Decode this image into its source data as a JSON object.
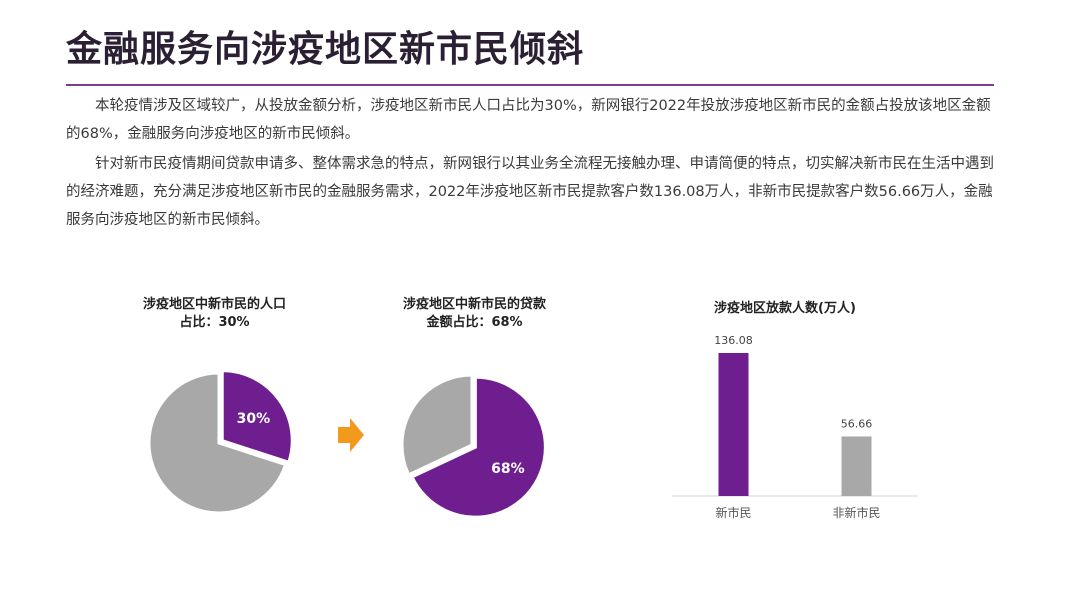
{
  "page": {
    "title": "金融服务向涉疫地区新市民倾斜",
    "paragraph1": "本轮疫情涉及区域较广，从投放金额分析，涉疫地区新市民人口占比为30%，新网银行2022年投放涉疫地区新市民的金额占投放该地区金额的68%，金融服务向涉疫地区的新市民倾斜。",
    "paragraph2": "针对新市民疫情期间贷款申请多、整体需求急的特点，新网银行以其业务全流程无接触办理、申请简便的特点，切实解决新市民在生活中遇到的经济难题，充分满足涉疫地区新市民的金融服务需求，2022年涉疫地区新市民提款客户数136.08万人，非新市民提款客户数56.66万人，金融服务向涉疫地区的新市民倾斜。"
  },
  "colors": {
    "purple": "#6e1e8f",
    "gray": "#a8a8a8",
    "arrow": "#f39a1c",
    "rule": "#7a3f8e"
  },
  "chart_data": [
    {
      "type": "pie",
      "title_line1": "涉疫地区中新市民的人口",
      "title_line2": "占比：30%",
      "slices": [
        {
          "value": 30,
          "label": "30%",
          "color": "#6e1e8f"
        },
        {
          "value": 70,
          "label": "",
          "color": "#a8a8a8"
        }
      ]
    },
    {
      "type": "pie",
      "title_line1": "涉疫地区中新市民的贷款",
      "title_line2": "金额占比：68%",
      "slices": [
        {
          "value": 68,
          "label": "68%",
          "color": "#6e1e8f"
        },
        {
          "value": 32,
          "label": "",
          "color": "#a8a8a8"
        }
      ]
    },
    {
      "type": "bar",
      "title": "涉疫地区放款人数(万人)",
      "categories": [
        "新市民",
        "非新市民"
      ],
      "values": [
        136.08,
        56.66
      ],
      "value_labels": [
        "136.08",
        "56.66"
      ],
      "colors": [
        "#6e1e8f",
        "#a8a8a8"
      ]
    }
  ]
}
